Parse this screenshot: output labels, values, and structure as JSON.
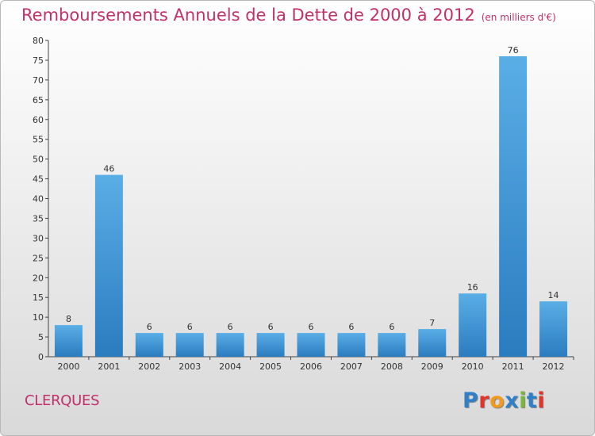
{
  "header": {
    "title": "Remboursements Annuels de la Dette de 2000 à 2012",
    "subtitle": "(en milliers d'€)"
  },
  "footer": {
    "commune": "CLERQUES",
    "logo": "Proxiti"
  },
  "colors": {
    "title": "#c0306a",
    "bar_top": "#5aaee6",
    "bar_bottom": "#2a7cbf",
    "logo_letters": [
      "#2f80c8",
      "#e0352b",
      "#f29a1f",
      "#2f80c8",
      "#7ab83a",
      "#2f80c8",
      "#e0352b"
    ]
  },
  "chart_data": {
    "type": "bar",
    "title": "Remboursements Annuels de la Dette de 2000 à 2012",
    "subtitle": "(en milliers d'€)",
    "xlabel": "",
    "ylabel": "",
    "categories": [
      "2000",
      "2001",
      "2002",
      "2003",
      "2004",
      "2005",
      "2006",
      "2007",
      "2008",
      "2009",
      "2010",
      "2011",
      "2012"
    ],
    "values": [
      8,
      46,
      6,
      6,
      6,
      6,
      6,
      6,
      6,
      7,
      16,
      76,
      14
    ],
    "ylim": [
      0,
      80
    ],
    "yticks": [
      0,
      5,
      10,
      15,
      20,
      25,
      30,
      35,
      40,
      45,
      50,
      55,
      60,
      65,
      70,
      75,
      80
    ],
    "grid": false,
    "legend": "none"
  }
}
